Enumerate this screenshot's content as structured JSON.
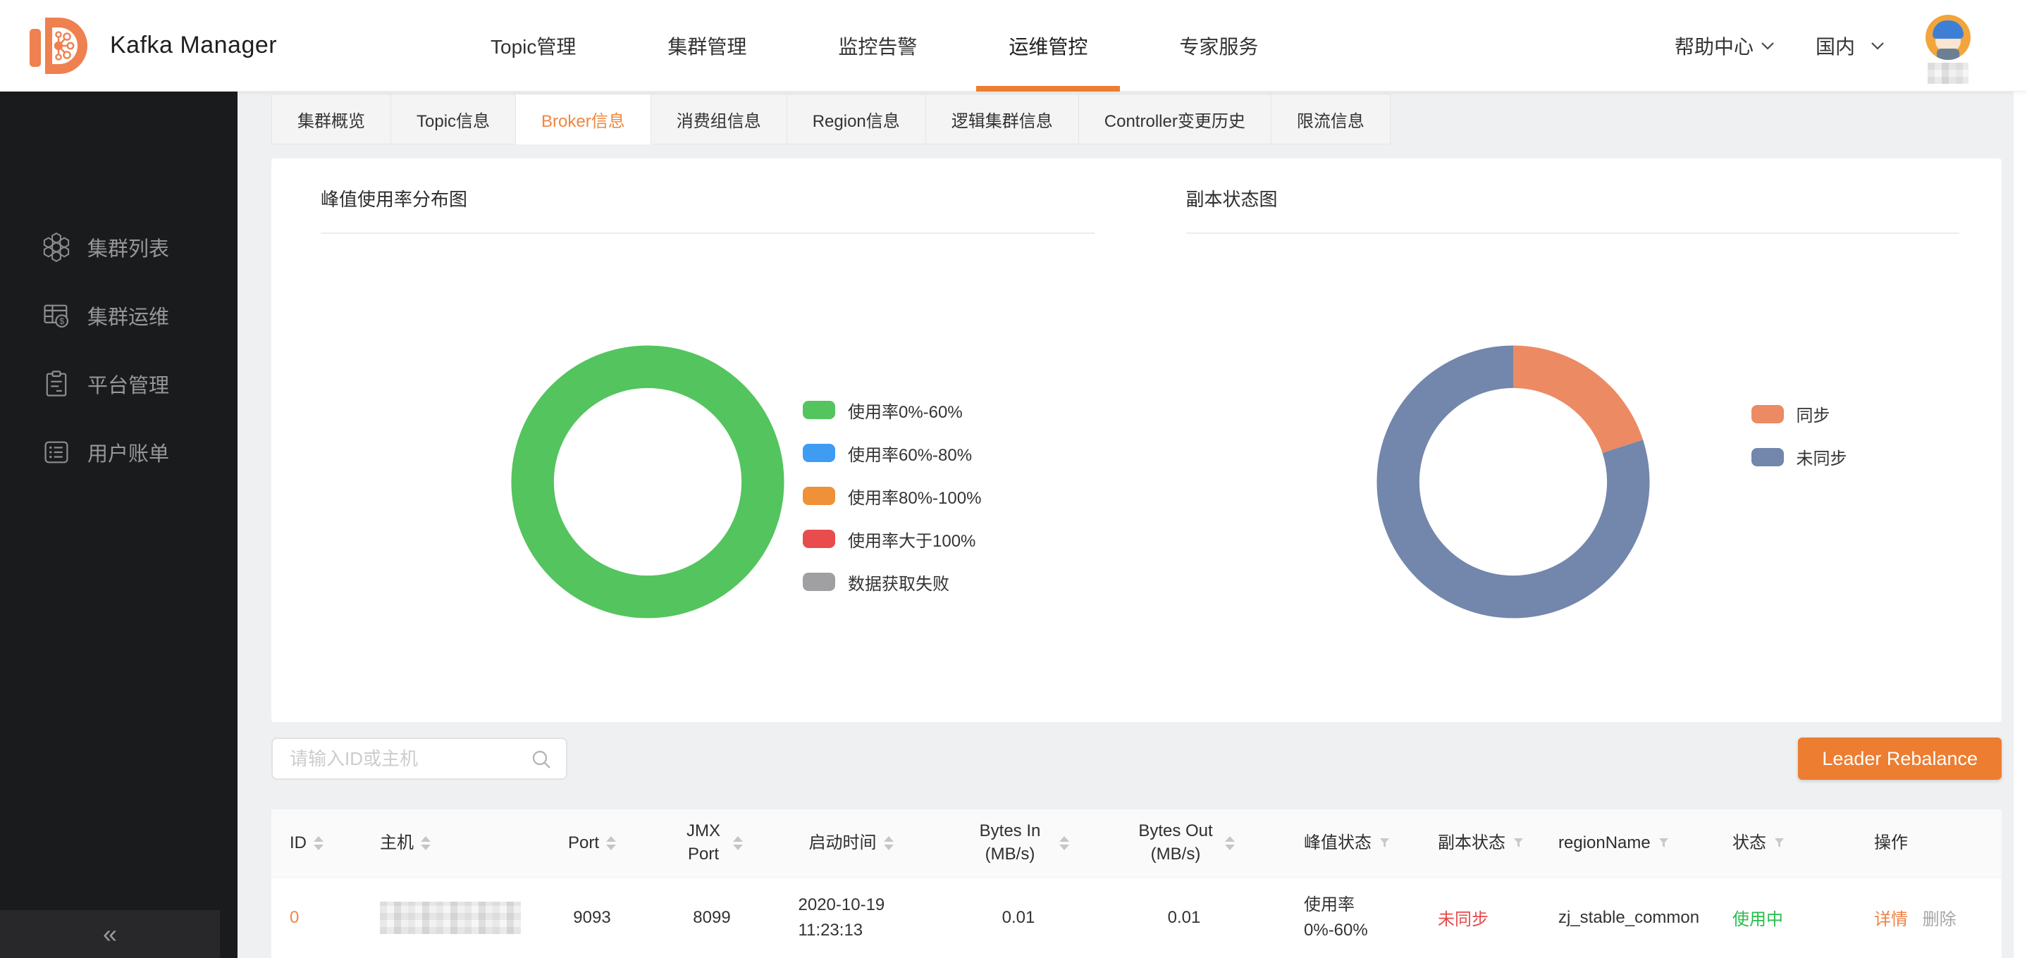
{
  "header": {
    "app_title": "Kafka Manager",
    "nav_items": [
      {
        "label": "Topic管理",
        "active": false
      },
      {
        "label": "集群管理",
        "active": false
      },
      {
        "label": "监控告警",
        "active": false
      },
      {
        "label": "运维管控",
        "active": true
      },
      {
        "label": "专家服务",
        "active": false
      }
    ],
    "help_center": "帮助中心",
    "region_selector": "国内"
  },
  "sidebar": {
    "items": [
      {
        "label": "集群列表",
        "icon": "cluster-list-icon"
      },
      {
        "label": "集群运维",
        "icon": "cluster-ops-icon"
      },
      {
        "label": "平台管理",
        "icon": "platform-admin-icon"
      },
      {
        "label": "用户账单",
        "icon": "user-bill-icon"
      }
    ],
    "collapse_glyph": "«"
  },
  "tabs": [
    {
      "label": "集群概览",
      "active": false
    },
    {
      "label": "Topic信息",
      "active": false
    },
    {
      "label": "Broker信息",
      "active": true
    },
    {
      "label": "消费组信息",
      "active": false
    },
    {
      "label": "Region信息",
      "active": false
    },
    {
      "label": "逻辑集群信息",
      "active": false
    },
    {
      "label": "Controller变更历史",
      "active": false
    },
    {
      "label": "限流信息",
      "active": false
    }
  ],
  "chart_data": [
    {
      "type": "pie",
      "variant": "donut",
      "title": "峰值使用率分布图",
      "labels": [
        "使用率0%-60%",
        "使用率60%-80%",
        "使用率80%-100%",
        "使用率大于100%",
        "数据获取失败"
      ],
      "values": [
        100,
        0,
        0,
        0,
        0
      ],
      "colors": [
        "#54C45E",
        "#3F9CF3",
        "#EF9138",
        "#E84C4C",
        "#A0A0A3"
      ],
      "legend_position": "right"
    },
    {
      "type": "pie",
      "variant": "donut",
      "title": "副本状态图",
      "labels": [
        "同步",
        "未同步"
      ],
      "values": [
        20,
        80
      ],
      "colors": [
        "#EC8A63",
        "#7386AB"
      ],
      "legend_position": "right"
    }
  ],
  "toolbar": {
    "search_placeholder": "请输入ID或主机",
    "rebalance_button": "Leader Rebalance"
  },
  "broker_table": {
    "columns": [
      {
        "label": "ID",
        "sortable": true
      },
      {
        "label": "主机",
        "sortable": true
      },
      {
        "label": "Port",
        "sortable": true
      },
      {
        "label": "JMX Port",
        "sortable": true
      },
      {
        "label": "启动时间",
        "sortable": true
      },
      {
        "label": "Bytes In (MB/s)",
        "sortable": true
      },
      {
        "label": "Bytes Out (MB/s)",
        "sortable": true
      },
      {
        "label": "峰值状态",
        "filterable": true
      },
      {
        "label": "副本状态",
        "filterable": true
      },
      {
        "label": "regionName",
        "filterable": true
      },
      {
        "label": "状态",
        "filterable": true
      },
      {
        "label": "操作"
      }
    ],
    "rows": [
      {
        "id": "0",
        "host": "",
        "host_redacted": true,
        "port": "9093",
        "jmx_port": "8099",
        "start_time": "2020-10-19 11:23:13",
        "bytes_in": "0.01",
        "bytes_out": "0.01",
        "peak_status": "使用率0%-60%",
        "replica_status": "未同步",
        "region_name": "zj_stable_common",
        "status": "使用中",
        "actions": [
          {
            "label": "详情"
          },
          {
            "label": "删除"
          }
        ]
      }
    ]
  },
  "colors": {
    "accent_orange": "#ED7D30",
    "link_orange": "#F2854B",
    "danger_red": "#E94A4A",
    "success_green": "#27BD4B",
    "muted_gray": "#A6A6A9",
    "sidebar_bg": "#1A1B1D",
    "content_bg": "#EEF0F1"
  }
}
